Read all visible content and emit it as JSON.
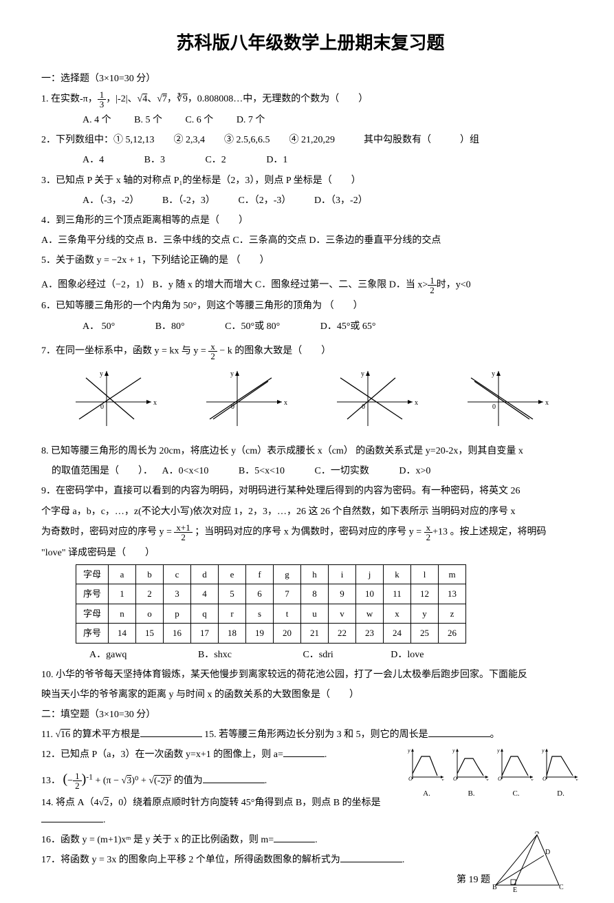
{
  "title": "苏科版八年级数学上册期末复习题",
  "sec1": "一：选择题（3×10=30 分）",
  "q1": {
    "text": "1. 在实数-π，",
    "f1n": "1",
    "f1d": "3",
    "mid": "，|-2|、",
    "s4": "4",
    "comma1": "、",
    "s7": "7",
    "comma2": "，",
    "cr9": "9",
    "tail": "，0.808008…中，无理数的个数为（　　）",
    "oA": "A. 4 个",
    "oB": "B. 5 个",
    "oC": "C. 6 个",
    "oD": "D. 7 个"
  },
  "q2": {
    "text": "2．下列数组中：① 5,12,13　　② 2,3,4　　③ 2.5,6,6.5　　④ 21,20,29　　　其中勾股数有（　　　）组",
    "oA": "A．4",
    "oB": "B．3",
    "oC": "C．2",
    "oD": "D．1"
  },
  "q3": {
    "text": "3．已知点 P 关于 x 轴的对称点 P₁的坐标是（2，3），则点 P 坐标是（　　）",
    "oA": "A．（-3，-2）",
    "oB": "B．（-2，3）",
    "oC": "C．（2，-3）",
    "oD": "D．（3，-2）"
  },
  "q4": {
    "text": "4．到三角形的三个顶点距离相等的点是（　　）",
    "oA": "A．三条角平分线的交点",
    "oB": "B．三条中线的交点",
    "oC": "C．三条高的交点",
    "oD": "D．三条边的垂直平分线的交点"
  },
  "q5": {
    "text": "5．关于函数 y = −2x + 1，下列结论正确的是 （　　）",
    "oA": "A．图象必经过（−2，1）",
    "oB": "B．y 随 x 的增大而增大",
    "oC": "C．图象经过第一、二、三象限",
    "oD": "D．当 x>",
    "oDfracn": "1",
    "oDfracd": "2",
    "oDtail": "时，y<0"
  },
  "q6": {
    "text": "6．已知等腰三角形的一个内角为 50°，则这个等腰三角形的顶角为 （　　）",
    "oA": "A． 50°",
    "oB": "B．80°",
    "oC": "C．50°或 80°",
    "oD": "D．45°或 65°"
  },
  "q7": {
    "pre": "7．在同一坐标系中，函数 ",
    "ykx": "y = kx",
    "and": " 与 ",
    "eqn": "x",
    "eqd": "2",
    "eqtail": "− k",
    "mid": "y =",
    "post": " 的图象大致是（　　）"
  },
  "charts": {
    "line_color": "#000",
    "axis_color": "#000",
    "items": [
      {
        "l1x1": 15,
        "l1y1": 75,
        "l1x2": 105,
        "l1y2": 15,
        "l2x1": 25,
        "l2y1": 15,
        "l2x2": 95,
        "l2y2": 75
      },
      {
        "l1x1": 15,
        "l1y1": 75,
        "l1x2": 105,
        "l1y2": 15,
        "l2x1": 20,
        "l2y1": 75,
        "l2x2": 100,
        "l2y2": 20
      },
      {
        "l1x1": 15,
        "l1y1": 15,
        "l1x2": 105,
        "l1y2": 75,
        "l2x1": 25,
        "l2y1": 75,
        "l2x2": 95,
        "l2y2": 15
      },
      {
        "l1x1": 15,
        "l1y1": 15,
        "l1x2": 105,
        "l1y2": 75,
        "l2x1": 20,
        "l2y1": 20,
        "l2x2": 100,
        "l2y2": 75
      }
    ]
  },
  "q8": {
    "text": "8. 已知等腰三角形的周长为 20cm，将底边长 y（cm）表示成腰长 x（cm） 的函数关系式是 y=20-2x，则其自变量 x",
    "line2": "的取值范围是（　　）．",
    "oA": "A．0<x<10",
    "oB": "B．5<x<10",
    "oC": "C．一切实数",
    "oD": "D．x>0"
  },
  "q9": {
    "l1": "9．在密码学中，直接可以看到的内容为明码，对明码进行某种处理后得到的内容为密码。有一种密码，将英文 26",
    "l2": "个字母 a，b，c，…，z(不论大小写)依次对应 1，2，3，…，26 这 26 个自然数，如下表所示 当明码对应的序号 x",
    "l3a": "为奇数时，密码对应的序号 ",
    "eq1n": "x+1",
    "eq1d": "2",
    "eq1pre": "y =",
    "l3b": "；当明码对应的序号 x 为偶数时，密码对应的序号 ",
    "eq2n": "x",
    "eq2d": "2",
    "eq2pre": "y =",
    "eq2tail": "+13",
    "l3c": "。按上述规定，将明码",
    "l4": "\"love\" 译成密码是（　　）",
    "hdr": [
      "字母",
      "序号",
      "字母",
      "序号"
    ],
    "row1": [
      "a",
      "b",
      "c",
      "d",
      "e",
      "f",
      "g",
      "h",
      "i",
      "j",
      "k",
      "l",
      "m"
    ],
    "row2": [
      "1",
      "2",
      "3",
      "4",
      "5",
      "6",
      "7",
      "8",
      "9",
      "10",
      "11",
      "12",
      "13"
    ],
    "row3": [
      "n",
      "o",
      "p",
      "q",
      "r",
      "s",
      "t",
      "u",
      "v",
      "w",
      "x",
      "y",
      "z"
    ],
    "row4": [
      "14",
      "15",
      "16",
      "17",
      "18",
      "19",
      "20",
      "21",
      "22",
      "23",
      "24",
      "25",
      "26"
    ],
    "oA": "A．gawq",
    "oB": "B．shxc",
    "oC": "C．sdri",
    "oD": "D．love"
  },
  "q10": {
    "l1": "10. 小华的爷爷每天坚持体育锻炼，某天他慢步到离家较远的荷花池公园，打了一会儿太极拳后跑步回家。下面能反",
    "l2": "映当天小华的爷爷离家的距离 y 与时间 x 的函数关系的大致图象是（　　）"
  },
  "sec2": "二：填空题（3×10=30 分）",
  "q11": {
    "pre": "11. ",
    "s16": "16",
    "mid": " 的算术平方根是",
    "q15": "15. 若等腰三角形两边长分别为 3 和 5，则它的周长是",
    "tail": "。"
  },
  "q12": {
    "text": "12．已知点 P（a，3）在一次函数 y=x+1 的图像上，则 a=",
    "tail": "."
  },
  "q13": {
    "pre": "13．",
    "expr": "(",
    "fn": "1",
    "fd": "2",
    "neg": "−",
    "pow1": ")⁻¹",
    "plus1": " + (π − ",
    "s3": "3",
    "pow0": ")⁰ + ",
    "s22": "(-2)²",
    "close": "",
    "tail": " 的值为",
    "end": "."
  },
  "q14": {
    "pre": "14. 将点 A（4",
    "s2": "2",
    "mid": "，0）绕着原点顺时针方向旋转 45°角得到点 B，则点 B 的坐标是",
    "tail": "."
  },
  "q16": {
    "pre": "16．函数 ",
    "eq": "y = (m+1)xᵐ",
    "mid": " 是 y 关于 x 的正比例函数，则 m=",
    "tail": "."
  },
  "q17": {
    "pre": "17．将函数 ",
    "eq": "y = 3x",
    "mid": " 的图象向上平移 2 个单位，所得函数图象的解析式为",
    "tail": "."
  },
  "minigraphs": {
    "labels": [
      "A.",
      "B.",
      "C.",
      "D."
    ],
    "paths": [
      "M 7 40 L 20 15 L 32 15 L 43 43",
      "M 7 40 L 18 18 L 30 18 L 37 30 L 45 43",
      "M 7 43 L 20 15 L 30 15 L 45 43",
      "M 7 43 L 15 15 L 28 15 L 45 43"
    ]
  },
  "triangle": {
    "A": "A",
    "B": "B",
    "C": "C",
    "D": "D",
    "E": "E"
  },
  "caption": "第 19 题"
}
